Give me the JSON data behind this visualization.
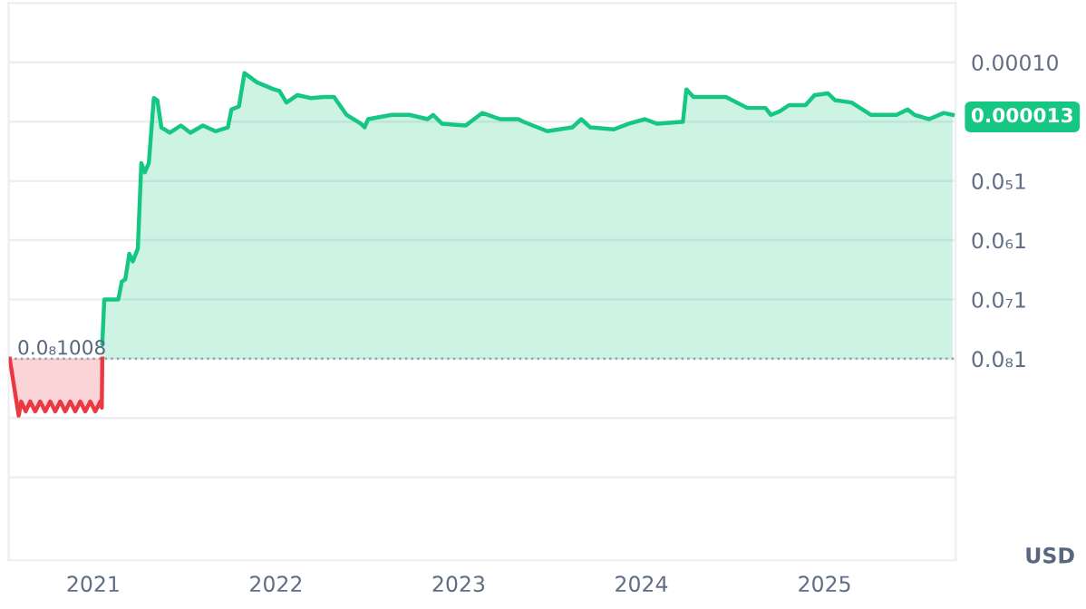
{
  "chart_data": {
    "type": "area",
    "ylabel": "USD",
    "log": true,
    "grid": "y",
    "legend": false,
    "xlim": [
      "2020-07-16",
      "2025-09-20"
    ],
    "xticks": [
      {
        "value": "2021-01-01",
        "label": "2021"
      },
      {
        "value": "2022-01-01",
        "label": "2022"
      },
      {
        "value": "2023-01-01",
        "label": "2023"
      },
      {
        "value": "2024-01-01",
        "label": "2024"
      },
      {
        "value": "2025-01-01",
        "label": "2025"
      }
    ],
    "ylim": [
      4e-13,
      0.001
    ],
    "yticks": [
      {
        "value": 0.0001,
        "label": "0.00010"
      },
      {
        "value": 1e-05,
        "label": null
      },
      {
        "value": 1.3e-05,
        "label": "0.000013"
      },
      {
        "value": 1e-06,
        "label": "0.0₅1"
      },
      {
        "value": 1e-07,
        "label": "0.0₆1"
      },
      {
        "value": 1e-08,
        "label": "0.0₇1"
      },
      {
        "value": 1e-09,
        "label": "0.0₈1"
      },
      {
        "value": 1e-10,
        "label": null
      },
      {
        "value": 1e-11,
        "label": null
      }
    ],
    "ref_lines": [
      {
        "axis": "y",
        "value": 1.008e-09,
        "label": "0.0₈1008",
        "line_style": "dotted",
        "color": "#a0a6b0"
      }
    ],
    "series": [
      {
        "color": "#ea3943",
        "x": [
          "2020-07-18",
          "2020-08-05",
          "2020-08-10",
          "2020-08-19",
          "2020-08-28",
          "2020-09-07",
          "2020-09-17",
          "2020-09-27",
          "2020-10-07",
          "2020-10-17",
          "2020-10-27",
          "2020-11-06",
          "2020-11-16",
          "2020-11-26",
          "2020-12-06",
          "2020-12-16",
          "2020-12-26",
          "2021-01-05",
          "2021-01-15",
          "2021-01-18",
          "2021-01-19"
        ],
        "values": [
          1.008e-09,
          1.1e-10,
          1.9e-10,
          1.3e-10,
          1.9e-10,
          1.3e-10,
          1.9e-10,
          1.3e-10,
          1.9e-10,
          1.3e-10,
          1.9e-10,
          1.3e-10,
          1.9e-10,
          1.3e-10,
          1.9e-10,
          1.3e-10,
          1.9e-10,
          1.3e-10,
          1.9e-10,
          1.5e-10,
          1.008e-09
        ]
      },
      {
        "color": "#16c784",
        "x": [
          "2021-01-19",
          "2021-01-23",
          "2021-02-20",
          "2021-02-27",
          "2021-03-06",
          "2021-03-14",
          "2021-03-21",
          "2021-03-31",
          "2021-04-07",
          "2021-04-14",
          "2021-04-22",
          "2021-05-02",
          "2021-05-09",
          "2021-05-17",
          "2021-06-03",
          "2021-06-25",
          "2021-07-14",
          "2021-08-08",
          "2021-09-02",
          "2021-09-27",
          "2021-10-04",
          "2021-10-19",
          "2021-10-30",
          "2021-11-24",
          "2021-12-28",
          "2022-01-08",
          "2022-01-22",
          "2022-02-13",
          "2022-03-11",
          "2022-04-08",
          "2022-04-27",
          "2022-05-22",
          "2022-06-20",
          "2022-06-27",
          "2022-07-04",
          "2022-08-20",
          "2022-09-25",
          "2022-10-31",
          "2022-11-11",
          "2022-11-29",
          "2023-01-15",
          "2023-02-17",
          "2023-03-25",
          "2023-04-30",
          "2023-05-11",
          "2023-06-27",
          "2023-08-16",
          "2023-09-03",
          "2023-09-21",
          "2023-11-07",
          "2023-12-06",
          "2024-01-08",
          "2024-02-02",
          "2024-03-20",
          "2024-03-24",
          "2024-03-31",
          "2024-04-14",
          "2024-05-13",
          "2024-06-18",
          "2024-07-31",
          "2024-09-05",
          "2024-09-16",
          "2024-10-04",
          "2024-10-22",
          "2024-11-24",
          "2024-12-12",
          "2025-01-08",
          "2025-01-22",
          "2025-02-24",
          "2025-04-04",
          "2025-05-25",
          "2025-06-16",
          "2025-06-30",
          "2025-07-29",
          "2025-08-27",
          "2025-09-14"
        ],
        "values": [
          1.8e-09,
          1e-08,
          1e-08,
          2e-08,
          2.2e-08,
          5.9e-08,
          4.4e-08,
          7.2e-08,
          2e-06,
          1.4e-06,
          2e-06,
          2.5e-05,
          2.3e-05,
          8e-06,
          6.5e-06,
          8.6e-06,
          6.5e-06,
          8.6e-06,
          6.9e-06,
          8e-06,
          1.6e-05,
          1.8e-05,
          6.6e-05,
          4.6e-05,
          3.5e-05,
          3.3e-05,
          2.1e-05,
          2.8e-05,
          2.5e-05,
          2.6e-05,
          2.6e-05,
          1.3e-05,
          9.2e-06,
          8e-06,
          1.1e-05,
          1.3e-05,
          1.3e-05,
          1.1e-05,
          1.3e-05,
          9.2e-06,
          8.6e-06,
          1.4e-05,
          1.1e-05,
          1.1e-05,
          9.9e-06,
          6.9e-06,
          8e-06,
          1.1e-05,
          8e-06,
          7.4e-06,
          9.2e-06,
          1.1e-05,
          9.2e-06,
          9.9e-06,
          9.9e-06,
          3.5e-05,
          2.6e-05,
          2.6e-05,
          2.6e-05,
          1.7e-05,
          1.7e-05,
          1.3e-05,
          1.5e-05,
          1.9e-05,
          1.9e-05,
          2.8e-05,
          3e-05,
          2.3e-05,
          2.1e-05,
          1.3e-05,
          1.3e-05,
          1.6e-05,
          1.3e-05,
          1.1e-05,
          1.4e-05,
          1.3e-05
        ]
      }
    ]
  }
}
